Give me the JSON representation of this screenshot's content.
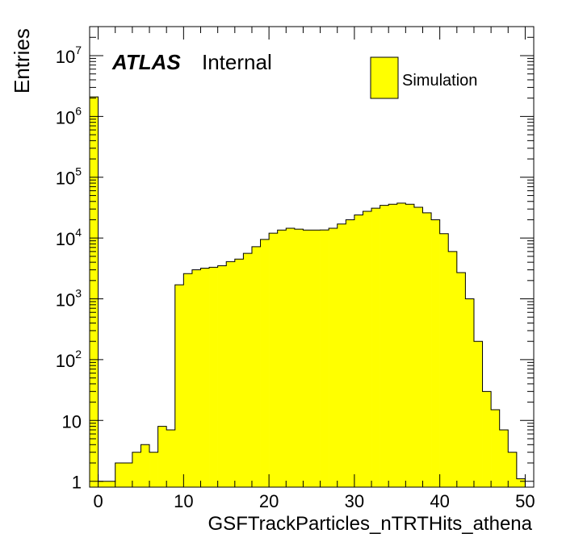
{
  "chart_data": {
    "type": "bar",
    "style": "histogram-step-filled",
    "x": [
      -1,
      0,
      1,
      2,
      3,
      4,
      5,
      6,
      7,
      8,
      9,
      10,
      11,
      12,
      13,
      14,
      15,
      16,
      17,
      18,
      19,
      20,
      21,
      22,
      23,
      24,
      25,
      26,
      27,
      28,
      29,
      30,
      31,
      32,
      33,
      34,
      35,
      36,
      37,
      38,
      39,
      40,
      41,
      42,
      43,
      44,
      45,
      46,
      47,
      48,
      49,
      50
    ],
    "bin_width": 1,
    "values": [
      2100000,
      1,
      1,
      2,
      2,
      3,
      4,
      3,
      8,
      7,
      1700,
      2600,
      3000,
      3200,
      3300,
      3500,
      4100,
      4500,
      5600,
      7200,
      9500,
      12000,
      13500,
      14500,
      14000,
      13500,
      13500,
      13600,
      14500,
      17000,
      20000,
      24000,
      27500,
      31000,
      34500,
      36000,
      37500,
      36000,
      32000,
      26000,
      20000,
      11800,
      6000,
      2700,
      1000,
      200,
      30,
      15,
      7,
      3,
      1.1,
      0
    ],
    "xlabel": "GSFTrackParticles_nTRTHits_athena",
    "ylabel": "Entries",
    "xlim": [
      -1,
      51
    ],
    "ylim": [
      0.8,
      30000000
    ],
    "yscale": "log",
    "x_ticks": [
      0,
      10,
      20,
      30,
      40,
      50
    ],
    "y_ticks": [
      {
        "value": 1,
        "base": "1",
        "exp": ""
      },
      {
        "value": 10,
        "base": "10",
        "exp": ""
      },
      {
        "value": 100,
        "base": "10",
        "exp": "2"
      },
      {
        "value": 1000,
        "base": "10",
        "exp": "3"
      },
      {
        "value": 10000,
        "base": "10",
        "exp": "4"
      },
      {
        "value": 100000,
        "base": "10",
        "exp": "5"
      },
      {
        "value": 1000000,
        "base": "10",
        "exp": "6"
      },
      {
        "value": 10000000,
        "base": "10",
        "exp": "7"
      }
    ],
    "legend": {
      "position": "top-right",
      "entries": [
        {
          "label": "Simulation",
          "color": "#ffff00"
        }
      ]
    },
    "fill_color": "#ffff00",
    "line_color": "#000000",
    "grid": false
  },
  "annotation": {
    "atlas": "ATLAS",
    "label": "Internal"
  }
}
